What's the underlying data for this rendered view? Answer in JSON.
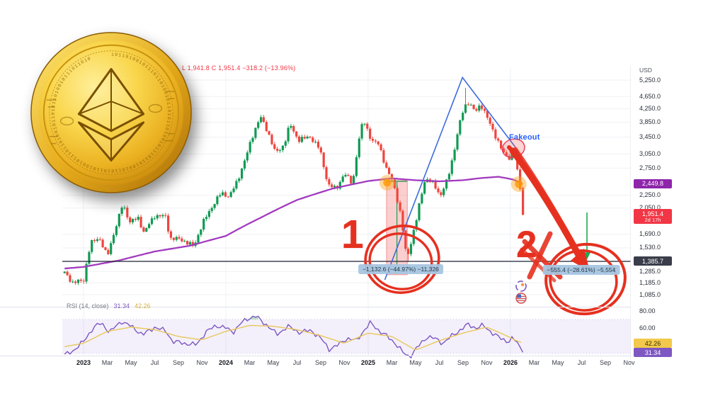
{
  "legend": {
    "ohlc_text": "L 1,941.8  C 1,951.4  −318.2 (−13.96%)"
  },
  "coin": {
    "alt": "golden Ethereum coin",
    "ring_text": "1011010010111011010010110101101001011101101001011010110100101110110100101101011010010111011010"
  },
  "price_axis": {
    "currency_label": "USD",
    "ticks": [
      {
        "value": 5250,
        "label": "5,250.0"
      },
      {
        "value": 4650,
        "label": "4,650.0"
      },
      {
        "value": 4250,
        "label": "4,250.0"
      },
      {
        "value": 3850,
        "label": "3,850.0"
      },
      {
        "value": 3450,
        "label": "3,450.0"
      },
      {
        "value": 3050,
        "label": "3,050.0"
      },
      {
        "value": 2750,
        "label": "2,750.0"
      },
      {
        "value": 2250,
        "label": "2,250.0"
      },
      {
        "value": 2050,
        "label": "2,050.0"
      },
      {
        "value": 1690,
        "label": "1,690.0"
      },
      {
        "value": 1530,
        "label": "1,530.0"
      },
      {
        "value": 1285,
        "label": "1,285.0"
      },
      {
        "value": 1185,
        "label": "1,185.0"
      },
      {
        "value": 1085,
        "label": "1,085.0"
      }
    ],
    "badges": {
      "ma": {
        "label": "2,449.8",
        "value": 2449.8,
        "color": "#8e24aa"
      },
      "last": {
        "label": "1,951.4",
        "countdown": "2d 17h",
        "value": 1951.4,
        "color": "#f23645"
      },
      "level": {
        "label": "1,385.7",
        "value": 1385.7,
        "color": "#3a3e4a"
      }
    }
  },
  "time_axis": {
    "ticks": [
      {
        "m": 0,
        "label": "2023",
        "year": true
      },
      {
        "m": 2,
        "label": "Mar"
      },
      {
        "m": 4,
        "label": "May"
      },
      {
        "m": 6,
        "label": "Jul"
      },
      {
        "m": 8,
        "label": "Sep"
      },
      {
        "m": 10,
        "label": "Nov"
      },
      {
        "m": 12,
        "label": "2024",
        "year": true
      },
      {
        "m": 14,
        "label": "Mar"
      },
      {
        "m": 16,
        "label": "May"
      },
      {
        "m": 18,
        "label": "Jul"
      },
      {
        "m": 20,
        "label": "Sep"
      },
      {
        "m": 22,
        "label": "Nov"
      },
      {
        "m": 24,
        "label": "2025",
        "year": true
      },
      {
        "m": 26,
        "label": "Mar"
      },
      {
        "m": 28,
        "label": "May"
      },
      {
        "m": 30,
        "label": "Jul"
      },
      {
        "m": 32,
        "label": "Sep"
      },
      {
        "m": 34,
        "label": "Nov"
      },
      {
        "m": 36,
        "label": "2026",
        "year": true
      },
      {
        "m": 38,
        "label": "Mar"
      },
      {
        "m": 40,
        "label": "May"
      },
      {
        "m": 42,
        "label": "Jul"
      },
      {
        "m": 44,
        "label": "Sep"
      },
      {
        "m": 46,
        "label": "Nov"
      }
    ]
  },
  "rsi_pane": {
    "legend_label": "RSI (14, close)",
    "value": "31.34",
    "ma_value": "42.26",
    "value_color": "#7e57c2",
    "ma_color": "#d8b13c",
    "ticks": [
      {
        "v": 80,
        "label": "80.00"
      },
      {
        "v": 60,
        "label": "60.00"
      }
    ],
    "badges": {
      "ma": {
        "label": "42.26",
        "color": "#f2c94c"
      },
      "value": {
        "label": "31.34",
        "color": "#7e57c2"
      }
    }
  },
  "annotations": {
    "fakeout_label": "Fakeout",
    "number_1": "1",
    "number_2": "2",
    "measure_1": "−1,132.6 (−44.97%) −11,326",
    "measure_2": "−555.4 (−28.61%) −5,554",
    "marker_color": "#e6301f",
    "fakeout_color": "#2962ff"
  },
  "chart_data": {
    "type": "candlestick",
    "timeframe": "weekly",
    "scale": "log",
    "ylim": [
      1085,
      5250
    ],
    "x_unit": "months since Jan 2023",
    "close_anchors": [
      [
        -1.6,
        1275
      ],
      [
        -0.9,
        1185
      ],
      [
        0,
        1205
      ],
      [
        0.6,
        1580
      ],
      [
        1.3,
        1655
      ],
      [
        2.0,
        1430
      ],
      [
        2.9,
        1870
      ],
      [
        3.3,
        2110
      ],
      [
        3.9,
        1850
      ],
      [
        4.6,
        1905
      ],
      [
        5.1,
        1710
      ],
      [
        6.0,
        1940
      ],
      [
        6.9,
        1930
      ],
      [
        7.3,
        1640
      ],
      [
        8.2,
        1630
      ],
      [
        9.3,
        1545
      ],
      [
        10.1,
        1850
      ],
      [
        10.9,
        2090
      ],
      [
        11.6,
        2290
      ],
      [
        12.3,
        2230
      ],
      [
        13.0,
        2510
      ],
      [
        13.7,
        2980
      ],
      [
        14.3,
        3520
      ],
      [
        14.9,
        4010
      ],
      [
        15.6,
        3540
      ],
      [
        16.2,
        3060
      ],
      [
        16.9,
        3260
      ],
      [
        17.4,
        3790
      ],
      [
        18.1,
        3380
      ],
      [
        19.1,
        3460
      ],
      [
        19.9,
        3170
      ],
      [
        20.6,
        2430
      ],
      [
        21.3,
        2360
      ],
      [
        22.0,
        2640
      ],
      [
        22.7,
        2450
      ],
      [
        23.2,
        3340
      ],
      [
        23.6,
        3940
      ],
      [
        24.3,
        3340
      ],
      [
        24.9,
        3290
      ],
      [
        25.5,
        2740
      ],
      [
        26.1,
        2480
      ],
      [
        26.8,
        1890
      ],
      [
        27.1,
        1520
      ],
      [
        27.35,
        1450
      ],
      [
        28.0,
        1820
      ],
      [
        28.8,
        2540
      ],
      [
        29.5,
        2460
      ],
      [
        30.1,
        2240
      ],
      [
        30.7,
        2530
      ],
      [
        31.2,
        3050
      ],
      [
        31.7,
        3780
      ],
      [
        32.1,
        4330
      ],
      [
        32.5,
        4460
      ],
      [
        33.0,
        4140
      ],
      [
        33.5,
        4400
      ],
      [
        34.2,
        3850
      ],
      [
        34.8,
        3440
      ],
      [
        35.4,
        3060
      ],
      [
        36.0,
        2950
      ],
      [
        36.3,
        3260
      ],
      [
        36.7,
        2430
      ],
      [
        37.0,
        2255
      ]
    ],
    "wick_overrides": [
      {
        "m": 27.35,
        "low": 1382
      },
      {
        "m": 32.3,
        "high": 4956
      }
    ],
    "last_candle": {
      "m": 37.05,
      "open": 2380,
      "high": 2405,
      "low": 1941.8,
      "close": 1951.4
    },
    "ma_anchors": [
      [
        -1.6,
        1315
      ],
      [
        0,
        1330
      ],
      [
        3,
        1395
      ],
      [
        6,
        1490
      ],
      [
        9,
        1555
      ],
      [
        12,
        1670
      ],
      [
        15,
        1915
      ],
      [
        18,
        2175
      ],
      [
        21,
        2365
      ],
      [
        24,
        2500
      ],
      [
        26,
        2550
      ],
      [
        28,
        2515
      ],
      [
        30,
        2495
      ],
      [
        32,
        2515
      ],
      [
        33.5,
        2555
      ],
      [
        35,
        2580
      ],
      [
        36.2,
        2530
      ],
      [
        37.05,
        2449.8
      ]
    ],
    "ma_last": 2449.8,
    "level_line": 1385.7,
    "rsi_anchors": [
      [
        -1.6,
        28
      ],
      [
        -0.9,
        33
      ],
      [
        0,
        44
      ],
      [
        0.8,
        60
      ],
      [
        1.5,
        66
      ],
      [
        2.2,
        55
      ],
      [
        3.2,
        68
      ],
      [
        4,
        62
      ],
      [
        5,
        52
      ],
      [
        6,
        61
      ],
      [
        7,
        56
      ],
      [
        7.5,
        44
      ],
      [
        8.5,
        42
      ],
      [
        9.5,
        40
      ],
      [
        10.3,
        55
      ],
      [
        11.2,
        63
      ],
      [
        12,
        60
      ],
      [
        12.6,
        55
      ],
      [
        13.3,
        66
      ],
      [
        14.0,
        72
      ],
      [
        14.5,
        74
      ],
      [
        15.0,
        68
      ],
      [
        15.6,
        62
      ],
      [
        16.3,
        52
      ],
      [
        17.2,
        62
      ],
      [
        18.2,
        55
      ],
      [
        19.2,
        57
      ],
      [
        20.0,
        48
      ],
      [
        20.7,
        35
      ],
      [
        21.5,
        40
      ],
      [
        22.2,
        48
      ],
      [
        23.0,
        45
      ],
      [
        23.7,
        58
      ],
      [
        24.2,
        66
      ],
      [
        25.0,
        56
      ],
      [
        25.6,
        50
      ],
      [
        26.3,
        42
      ],
      [
        27.0,
        30
      ],
      [
        27.5,
        26
      ],
      [
        28.2,
        38
      ],
      [
        29.0,
        50
      ],
      [
        29.7,
        47
      ],
      [
        30.3,
        42
      ],
      [
        31.0,
        50
      ],
      [
        31.8,
        58
      ],
      [
        32.4,
        64
      ],
      [
        33.1,
        60
      ],
      [
        33.7,
        63
      ],
      [
        34.4,
        55
      ],
      [
        35.1,
        48
      ],
      [
        35.8,
        44
      ],
      [
        36.2,
        48
      ],
      [
        36.6,
        42
      ],
      [
        37.05,
        31.34
      ]
    ],
    "rsi_ma_anchors": [
      [
        -1.6,
        38
      ],
      [
        0,
        42
      ],
      [
        2,
        56
      ],
      [
        4,
        61
      ],
      [
        6,
        58
      ],
      [
        8,
        50
      ],
      [
        10,
        46
      ],
      [
        12,
        56
      ],
      [
        14,
        63
      ],
      [
        16,
        62
      ],
      [
        18,
        58
      ],
      [
        20,
        51
      ],
      [
        22,
        42
      ],
      [
        24,
        54
      ],
      [
        26,
        50
      ],
      [
        28,
        34
      ],
      [
        30,
        45
      ],
      [
        32,
        54
      ],
      [
        34,
        61
      ],
      [
        35.5,
        52
      ],
      [
        36.5,
        45
      ],
      [
        37.05,
        42.26
      ]
    ],
    "rsi_last": 31.34,
    "rsi_ma_last": 42.26,
    "rsi_band": [
      30,
      70
    ],
    "colors": {
      "up": "#119a53",
      "down": "#ef453d",
      "ma": "#a23bbf",
      "level": "#1c2030",
      "rsi": "#7e57c2",
      "rsi_ma": "#e8c75a",
      "band_fill": "rgba(242,84,84,0.28)"
    },
    "drawings": {
      "triangle": [
        [
          25.4,
          1210
        ],
        [
          31.95,
          5350
        ],
        [
          36.35,
          3230
        ]
      ],
      "triangle_ext": [
        [
          36.35,
          3230
        ],
        [
          41.4,
          1514
        ]
      ],
      "red_band": {
        "m1": 25.55,
        "m2": 27.3,
        "p_top": 2508,
        "p_bottom": 1256
      },
      "orange_dots": [
        [
          25.6,
          2470
        ],
        [
          36.7,
          2445
        ]
      ],
      "green_arrow": {
        "m": 42.45,
        "p_from": 1985,
        "p_to": 1405
      },
      "fakeout_ellipse": {
        "m": 36.25,
        "p": 3180
      }
    }
  }
}
